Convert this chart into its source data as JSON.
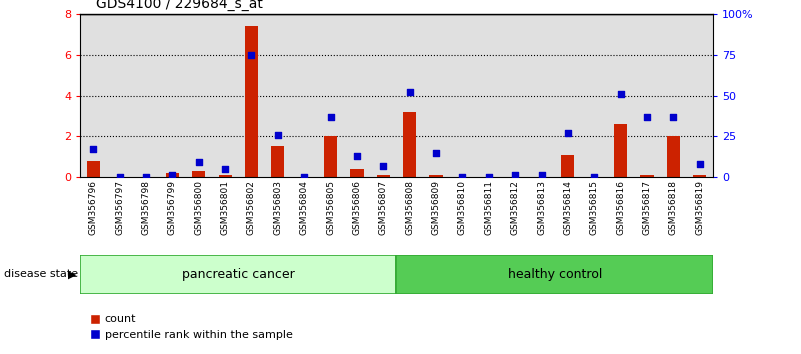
{
  "title": "GDS4100 / 229684_s_at",
  "samples": [
    "GSM356796",
    "GSM356797",
    "GSM356798",
    "GSM356799",
    "GSM356800",
    "GSM356801",
    "GSM356802",
    "GSM356803",
    "GSM356804",
    "GSM356805",
    "GSM356806",
    "GSM356807",
    "GSM356808",
    "GSM356809",
    "GSM356810",
    "GSM356811",
    "GSM356812",
    "GSM356813",
    "GSM356814",
    "GSM356815",
    "GSM356816",
    "GSM356817",
    "GSM356818",
    "GSM356819"
  ],
  "count": [
    0.8,
    0.0,
    0.0,
    0.2,
    0.3,
    0.1,
    7.4,
    1.5,
    0.0,
    2.0,
    0.4,
    0.1,
    3.2,
    0.1,
    0.0,
    0.0,
    0.0,
    0.0,
    1.1,
    0.0,
    2.6,
    0.1,
    2.0,
    0.1
  ],
  "percentile": [
    17,
    0,
    0,
    1,
    9,
    5,
    75,
    26,
    0,
    37,
    13,
    7,
    52,
    15,
    0,
    0,
    1,
    1,
    27,
    0,
    51,
    37,
    37,
    8
  ],
  "group_labels": [
    "pancreatic cancer",
    "healthy control"
  ],
  "cancer_count": 12,
  "healthy_count": 12,
  "bar_color": "#cc2200",
  "dot_color": "#0000cc",
  "ylim_left": [
    0,
    8
  ],
  "ylim_right": [
    0,
    100
  ],
  "yticks_left": [
    0,
    2,
    4,
    6,
    8
  ],
  "yticks_right": [
    0,
    25,
    50,
    75,
    100
  ],
  "ytick_labels_right": [
    "0",
    "25",
    "50",
    "75",
    "100%"
  ],
  "background_color": "#ffffff",
  "bar_bg_color": "#cccccc",
  "cancer_color": "#ccffcc",
  "healthy_color": "#55cc55",
  "group_border_color": "#33aa33"
}
